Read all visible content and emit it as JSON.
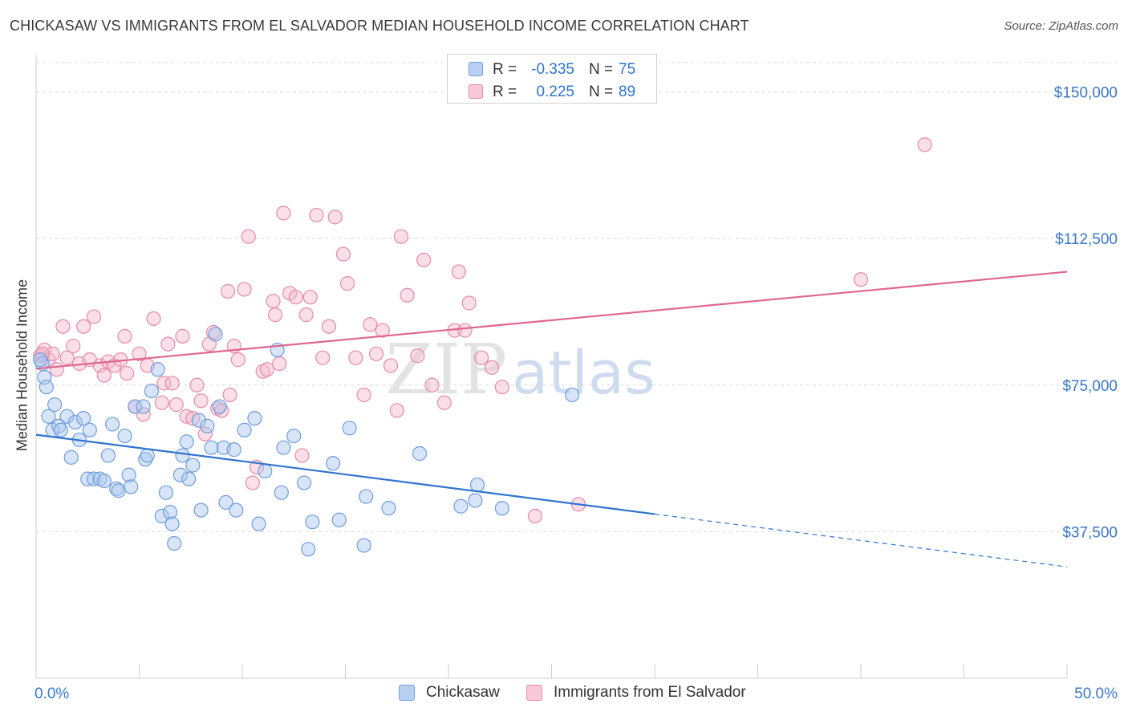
{
  "title": "CHICKASAW VS IMMIGRANTS FROM EL SALVADOR MEDIAN HOUSEHOLD INCOME CORRELATION CHART",
  "source": "Source: ZipAtlas.com",
  "watermark": {
    "zip": "ZIP",
    "atlas": "atlas"
  },
  "colors": {
    "blue": "#2f74d0",
    "blue_fill": "#a9c6ef",
    "blue_edge": "#6f9ddc",
    "pink": "#e0668f",
    "pink_fill": "#f4b8cb",
    "pink_edge": "#e68aa8",
    "axis_text": "#3a78c9",
    "grid": "#d9d9d9"
  },
  "legend": {
    "rows": [
      {
        "r_label": "R =",
        "r_value": "-0.335",
        "n_label": "N =",
        "n_value": "75"
      },
      {
        "r_label": "R =",
        "r_value": "0.225",
        "n_label": "N =",
        "n_value": "89"
      }
    ]
  },
  "chart_data": {
    "type": "scatter",
    "xlabel": "",
    "ylabel": "Median Household Income",
    "xlim": [
      0,
      50
    ],
    "ylim": [
      0,
      157500
    ],
    "x_tick_labels": [
      "0.0%",
      "50.0%"
    ],
    "y_ticks": [
      37500,
      75000,
      112500,
      150000
    ],
    "y_tick_labels": [
      "$37,500",
      "$75,000",
      "$112,500",
      "$150,000"
    ],
    "grid": true,
    "legend_placement": "bottom-center",
    "series": [
      {
        "name": "Chickasaw",
        "trend": {
          "x0": 0,
          "y0": 62300,
          "x1": 30,
          "y1": 42000,
          "dash_to_x": 50,
          "dash_to_y": 28500
        },
        "points": [
          [
            0.3,
            80500
          ],
          [
            0.4,
            77000
          ],
          [
            0.5,
            74500
          ],
          [
            0.6,
            67000
          ],
          [
            0.8,
            63500
          ],
          [
            0.9,
            70000
          ],
          [
            1.1,
            64500
          ],
          [
            1.2,
            63500
          ],
          [
            1.5,
            67000
          ],
          [
            1.7,
            56500
          ],
          [
            1.9,
            65500
          ],
          [
            2.1,
            61000
          ],
          [
            2.3,
            66500
          ],
          [
            2.5,
            51000
          ],
          [
            2.6,
            63500
          ],
          [
            2.8,
            51000
          ],
          [
            3.1,
            51000
          ],
          [
            3.3,
            50500
          ],
          [
            3.5,
            57000
          ],
          [
            3.7,
            65000
          ],
          [
            3.9,
            48500
          ],
          [
            4.0,
            48000
          ],
          [
            4.3,
            62000
          ],
          [
            4.5,
            52000
          ],
          [
            4.6,
            49000
          ],
          [
            4.8,
            69500
          ],
          [
            5.2,
            69500
          ],
          [
            5.3,
            56000
          ],
          [
            5.4,
            57000
          ],
          [
            5.6,
            73500
          ],
          [
            5.9,
            79000
          ],
          [
            6.1,
            41500
          ],
          [
            6.3,
            47500
          ],
          [
            6.5,
            42500
          ],
          [
            6.6,
            39500
          ],
          [
            6.7,
            34500
          ],
          [
            7.0,
            52000
          ],
          [
            7.1,
            57000
          ],
          [
            7.3,
            60500
          ],
          [
            7.4,
            51000
          ],
          [
            7.6,
            54500
          ],
          [
            7.9,
            66000
          ],
          [
            8.0,
            43000
          ],
          [
            8.3,
            64500
          ],
          [
            8.5,
            59000
          ],
          [
            8.7,
            88000
          ],
          [
            8.9,
            69500
          ],
          [
            9.1,
            59000
          ],
          [
            9.2,
            45000
          ],
          [
            9.6,
            58500
          ],
          [
            9.7,
            43000
          ],
          [
            10.1,
            63500
          ],
          [
            10.6,
            66500
          ],
          [
            10.8,
            39500
          ],
          [
            11.1,
            53000
          ],
          [
            11.7,
            84000
          ],
          [
            11.9,
            47500
          ],
          [
            12.0,
            59000
          ],
          [
            12.5,
            62000
          ],
          [
            13.0,
            50000
          ],
          [
            13.2,
            33000
          ],
          [
            13.4,
            40000
          ],
          [
            14.4,
            55000
          ],
          [
            14.7,
            40500
          ],
          [
            15.2,
            64000
          ],
          [
            15.9,
            34000
          ],
          [
            16.0,
            46500
          ],
          [
            17.1,
            43500
          ],
          [
            18.6,
            57500
          ],
          [
            20.6,
            44000
          ],
          [
            21.3,
            45500
          ],
          [
            21.4,
            49500
          ],
          [
            22.6,
            43500
          ],
          [
            26.0,
            72500
          ],
          [
            0.2,
            81500
          ]
        ]
      },
      {
        "name": "Immigrants from El Salvador",
        "trend": {
          "x0": 0,
          "y0": 79200,
          "x1": 50,
          "y1": 104000
        },
        "points": [
          [
            0.2,
            82500
          ],
          [
            0.4,
            84000
          ],
          [
            0.6,
            81500
          ],
          [
            0.8,
            83000
          ],
          [
            1.0,
            79000
          ],
          [
            1.3,
            90000
          ],
          [
            1.5,
            82000
          ],
          [
            1.8,
            85000
          ],
          [
            2.1,
            80500
          ],
          [
            2.3,
            90000
          ],
          [
            2.6,
            81500
          ],
          [
            2.8,
            92500
          ],
          [
            3.1,
            80000
          ],
          [
            3.3,
            77500
          ],
          [
            3.5,
            81000
          ],
          [
            3.8,
            80000
          ],
          [
            4.1,
            81500
          ],
          [
            4.3,
            87500
          ],
          [
            4.4,
            78000
          ],
          [
            4.8,
            69500
          ],
          [
            5.0,
            83000
          ],
          [
            5.2,
            67500
          ],
          [
            5.4,
            80000
          ],
          [
            5.7,
            92000
          ],
          [
            6.1,
            70500
          ],
          [
            6.2,
            75500
          ],
          [
            6.4,
            85500
          ],
          [
            6.6,
            75500
          ],
          [
            6.8,
            70000
          ],
          [
            7.1,
            87500
          ],
          [
            7.3,
            67000
          ],
          [
            7.6,
            66500
          ],
          [
            7.8,
            75000
          ],
          [
            8.0,
            71000
          ],
          [
            8.2,
            62500
          ],
          [
            8.4,
            85500
          ],
          [
            8.6,
            88500
          ],
          [
            8.8,
            69000
          ],
          [
            9.0,
            68500
          ],
          [
            9.3,
            99000
          ],
          [
            9.4,
            72500
          ],
          [
            9.6,
            85000
          ],
          [
            9.8,
            81500
          ],
          [
            10.1,
            99500
          ],
          [
            10.3,
            113000
          ],
          [
            10.5,
            50000
          ],
          [
            10.7,
            54000
          ],
          [
            11.0,
            78500
          ],
          [
            11.2,
            79000
          ],
          [
            11.5,
            96500
          ],
          [
            11.6,
            93000
          ],
          [
            11.8,
            80500
          ],
          [
            12.0,
            119000
          ],
          [
            12.3,
            98500
          ],
          [
            12.6,
            97500
          ],
          [
            12.9,
            57000
          ],
          [
            13.1,
            93000
          ],
          [
            13.3,
            97500
          ],
          [
            13.6,
            118500
          ],
          [
            13.9,
            82000
          ],
          [
            14.2,
            90000
          ],
          [
            14.5,
            118000
          ],
          [
            14.9,
            108500
          ],
          [
            15.1,
            101000
          ],
          [
            15.5,
            82000
          ],
          [
            15.9,
            72500
          ],
          [
            16.2,
            90500
          ],
          [
            16.5,
            83000
          ],
          [
            16.8,
            89000
          ],
          [
            17.2,
            80000
          ],
          [
            17.5,
            68500
          ],
          [
            17.7,
            113000
          ],
          [
            18.0,
            98000
          ],
          [
            18.5,
            82500
          ],
          [
            18.8,
            107000
          ],
          [
            19.2,
            75000
          ],
          [
            19.8,
            70500
          ],
          [
            20.3,
            89000
          ],
          [
            20.8,
            89000
          ],
          [
            21.0,
            96000
          ],
          [
            21.6,
            82000
          ],
          [
            22.1,
            79500
          ],
          [
            22.6,
            74500
          ],
          [
            24.2,
            41500
          ],
          [
            26.3,
            44500
          ],
          [
            40.0,
            102000
          ],
          [
            43.1,
            136500
          ],
          [
            20.5,
            104000
          ],
          [
            0.3,
            83000
          ]
        ]
      }
    ]
  },
  "bottom_legend": [
    "Chickasaw",
    "Immigrants from El Salvador"
  ]
}
